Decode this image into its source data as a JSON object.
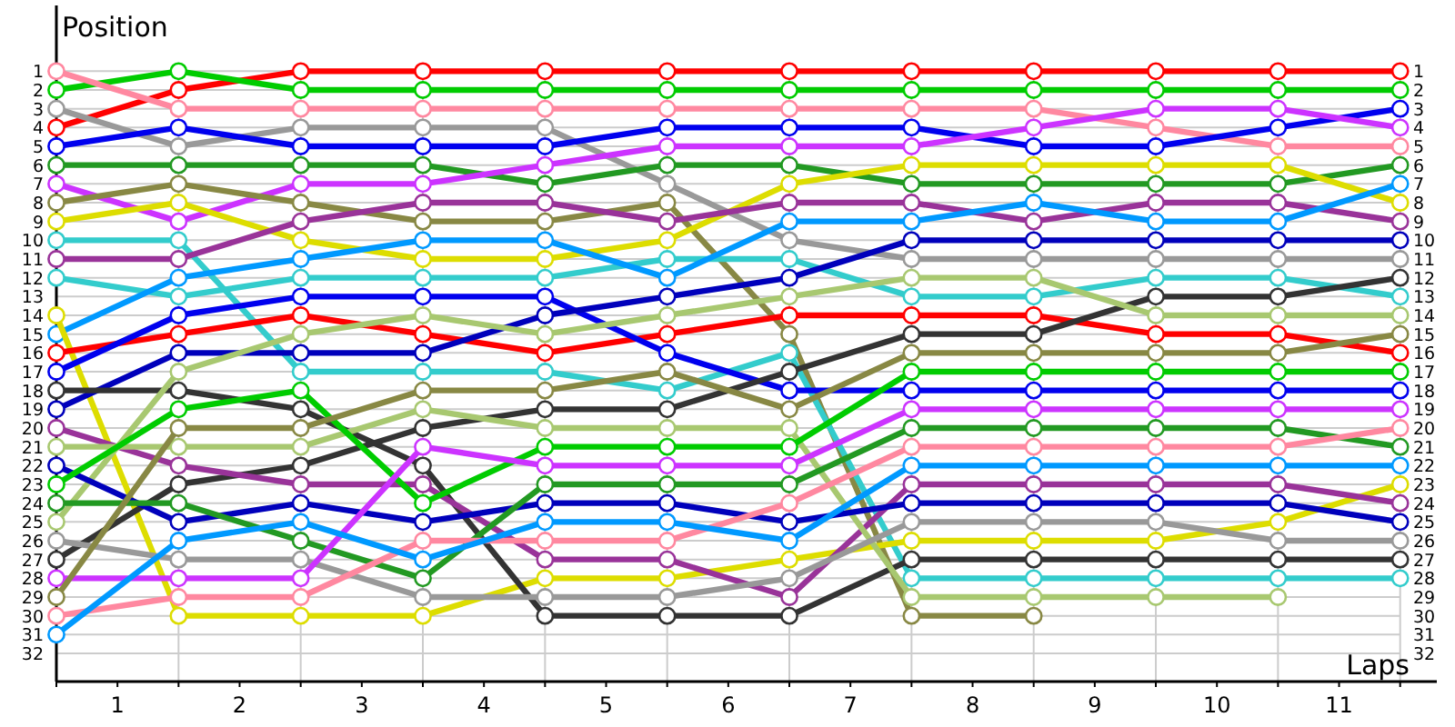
{
  "chart_data": {
    "type": "line",
    "xlabel": "Laps",
    "ylabel": "Position",
    "x": [
      0,
      1,
      2,
      3,
      4,
      5,
      6,
      7,
      8,
      9,
      10,
      11
    ],
    "xlim": [
      0,
      11.3
    ],
    "xticks": [
      {
        "value": 0,
        "label": null
      },
      {
        "value": 0.5,
        "label": "1"
      },
      {
        "value": 1,
        "label": null
      },
      {
        "value": 1.5,
        "label": "2"
      },
      {
        "value": 2,
        "label": null
      },
      {
        "value": 2.5,
        "label": "3"
      },
      {
        "value": 3,
        "label": null
      },
      {
        "value": 3.5,
        "label": "4"
      },
      {
        "value": 4,
        "label": null
      },
      {
        "value": 4.5,
        "label": "5"
      },
      {
        "value": 5,
        "label": null
      },
      {
        "value": 5.5,
        "label": "6"
      },
      {
        "value": 6,
        "label": null
      },
      {
        "value": 6.5,
        "label": "7"
      },
      {
        "value": 7,
        "label": null
      },
      {
        "value": 7.5,
        "label": "8"
      },
      {
        "value": 8,
        "label": null
      },
      {
        "value": 8.5,
        "label": "9"
      },
      {
        "value": 9,
        "label": null
      },
      {
        "value": 9.5,
        "label": "10"
      },
      {
        "value": 10,
        "label": null
      },
      {
        "value": 10.5,
        "label": "11"
      },
      {
        "value": 11,
        "label": null
      }
    ],
    "ylim": [
      33.5,
      -2.5
    ],
    "yticks": [
      1,
      2,
      3,
      4,
      5,
      6,
      7,
      8,
      9,
      10,
      11,
      12,
      13,
      14,
      15,
      16,
      17,
      18,
      19,
      20,
      21,
      22,
      23,
      24,
      25,
      26,
      27,
      28,
      29,
      30,
      31,
      32
    ],
    "y2lim": [
      33.5,
      -2.5
    ],
    "y2ticks": [
      1,
      2,
      3,
      4,
      5,
      6,
      7,
      8,
      9,
      10,
      11,
      12,
      13,
      14,
      15,
      16,
      17,
      18,
      19,
      20,
      21,
      22,
      23,
      24,
      25,
      26,
      27,
      28,
      29,
      30,
      31,
      32
    ],
    "grid": true,
    "marker": "circle",
    "line_style": "solid",
    "series": [
      {
        "color": "#ff0000",
        "values": [
          4,
          2,
          1,
          1,
          1,
          1,
          1,
          1,
          1,
          1,
          1,
          1
        ]
      },
      {
        "color": "#00cc00",
        "values": [
          2,
          1,
          2,
          2,
          2,
          2,
          2,
          2,
          2,
          2,
          2,
          2
        ]
      },
      {
        "color": "#ff88a0",
        "values": [
          1,
          3,
          3,
          3,
          3,
          3,
          3,
          3,
          3,
          4,
          5,
          5
        ]
      },
      {
        "color": "#999999",
        "values": [
          3,
          5,
          4,
          4,
          4,
          7,
          10,
          11,
          11,
          11,
          11,
          11
        ]
      },
      {
        "color": "#0000ee",
        "values": [
          5,
          4,
          5,
          5,
          5,
          4,
          4,
          4,
          5,
          5,
          4,
          3
        ]
      },
      {
        "color": "#229922",
        "values": [
          6,
          6,
          6,
          6,
          7,
          6,
          6,
          7,
          7,
          7,
          7,
          6
        ]
      },
      {
        "color": "#cc33ff",
        "values": [
          7,
          9,
          7,
          7,
          6,
          5,
          5,
          5,
          4,
          3,
          3,
          4
        ]
      },
      {
        "color": "#888844",
        "values": [
          8,
          7,
          8,
          9,
          9,
          8,
          15,
          30,
          30,
          null,
          null,
          null
        ]
      },
      {
        "color": "#dddd00",
        "values": [
          9,
          8,
          10,
          11,
          11,
          10,
          7,
          6,
          6,
          6,
          6,
          8
        ]
      },
      {
        "color": "#33cccc",
        "values": [
          10,
          10,
          17,
          17,
          17,
          18,
          16,
          28,
          28,
          28,
          28,
          28
        ]
      },
      {
        "color": "#993399",
        "values": [
          11,
          11,
          9,
          8,
          8,
          9,
          8,
          8,
          9,
          8,
          8,
          9
        ]
      },
      {
        "color": "#33cccc",
        "values": [
          12,
          13,
          12,
          12,
          12,
          11,
          11,
          13,
          13,
          12,
          12,
          13
        ]
      },
      {
        "color": "#0099ff",
        "values": [
          15,
          12,
          11,
          10,
          10,
          12,
          9,
          9,
          8,
          9,
          9,
          7
        ]
      },
      {
        "color": "#dddd00",
        "values": [
          14,
          30,
          30,
          30,
          28,
          28,
          27,
          26,
          26,
          26,
          25,
          23
        ]
      },
      {
        "color": "#ff0000",
        "values": [
          16,
          15,
          14,
          15,
          16,
          15,
          14,
          14,
          14,
          15,
          15,
          16
        ]
      },
      {
        "color": "#0000ee",
        "values": [
          17,
          14,
          13,
          13,
          13,
          16,
          18,
          18,
          18,
          18,
          18,
          18
        ]
      },
      {
        "color": "#0000bb",
        "values": [
          19,
          16,
          16,
          16,
          14,
          13,
          12,
          10,
          10,
          10,
          10,
          10
        ]
      },
      {
        "color": "#333333",
        "values": [
          18,
          18,
          19,
          22,
          30,
          30,
          30,
          27,
          27,
          27,
          27,
          27
        ]
      },
      {
        "color": "#333333",
        "values": [
          27,
          23,
          22,
          20,
          19,
          19,
          17,
          15,
          15,
          13,
          13,
          12
        ]
      },
      {
        "color": "#993399",
        "values": [
          20,
          22,
          23,
          23,
          27,
          27,
          29,
          23,
          23,
          23,
          23,
          24
        ]
      },
      {
        "color": "#a8c870",
        "values": [
          21,
          21,
          21,
          19,
          20,
          20,
          20,
          29,
          29,
          29,
          29,
          null
        ]
      },
      {
        "color": "#a8c870",
        "values": [
          25,
          17,
          15,
          14,
          15,
          14,
          13,
          12,
          12,
          14,
          14,
          14
        ]
      },
      {
        "color": "#0000bb",
        "values": [
          22,
          25,
          24,
          25,
          24,
          24,
          25,
          24,
          24,
          24,
          24,
          25
        ]
      },
      {
        "color": "#00cc00",
        "values": [
          23,
          19,
          18,
          24,
          21,
          21,
          21,
          17,
          17,
          17,
          17,
          17
        ]
      },
      {
        "color": "#229922",
        "values": [
          24,
          24,
          26,
          28,
          23,
          23,
          23,
          20,
          20,
          20,
          20,
          21
        ]
      },
      {
        "color": "#999999",
        "values": [
          26,
          27,
          27,
          29,
          29,
          29,
          28,
          25,
          25,
          25,
          26,
          26
        ]
      },
      {
        "color": "#cc33ff",
        "values": [
          28,
          28,
          28,
          21,
          22,
          22,
          22,
          19,
          19,
          19,
          19,
          19
        ]
      },
      {
        "color": "#ff88a0",
        "values": [
          30,
          29,
          29,
          26,
          26,
          26,
          24,
          21,
          21,
          21,
          21,
          20
        ]
      },
      {
        "color": "#0099ff",
        "values": [
          31,
          26,
          25,
          27,
          25,
          25,
          26,
          22,
          22,
          22,
          22,
          22
        ]
      },
      {
        "color": "#888844",
        "values": [
          29,
          20,
          20,
          18,
          18,
          17,
          19,
          16,
          16,
          16,
          16,
          15
        ]
      }
    ]
  }
}
